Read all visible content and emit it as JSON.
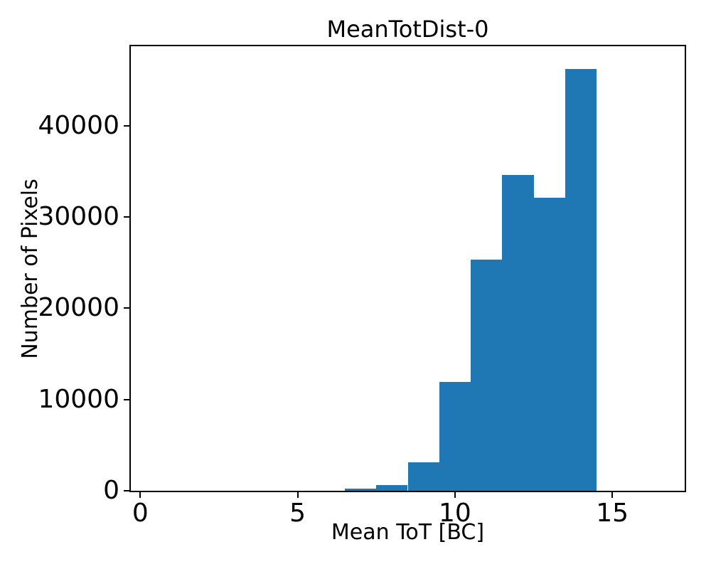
{
  "figure": {
    "background_color": "#ffffff",
    "spine_color": "#000000",
    "text_color": "#000000"
  },
  "chart_data": {
    "type": "bar",
    "subtype": "histogram",
    "title": "MeanTotDist-0",
    "xlabel": "Mean ToT [BC]",
    "ylabel": "Number of Pixels",
    "bar_color": "#1f77b4",
    "grid": false,
    "legend": null,
    "bin_width": 1,
    "bin_left_edges": [
      6.5,
      7.5,
      8.5,
      9.5,
      10.5,
      11.5,
      12.5,
      13.5
    ],
    "values": [
      250,
      600,
      3100,
      11900,
      25300,
      34600,
      32100,
      46200
    ],
    "bars": [
      {
        "range": "6.5-7.5",
        "count": 250
      },
      {
        "range": "7.5-8.5",
        "count": 600
      },
      {
        "range": "8.5-9.5",
        "count": 3100
      },
      {
        "range": "9.5-10.5",
        "count": 11900
      },
      {
        "range": "10.5-11.5",
        "count": 25300
      },
      {
        "range": "11.5-12.5",
        "count": 34600
      },
      {
        "range": "12.5-13.5",
        "count": 32100
      },
      {
        "range": "13.5-14.5",
        "count": 46200
      }
    ],
    "xlim": [
      -0.3,
      17.3
    ],
    "ylim": [
      0,
      48700
    ],
    "xticks": [
      0,
      5,
      10,
      15
    ],
    "yticks": [
      0,
      10000,
      20000,
      30000,
      40000
    ]
  }
}
